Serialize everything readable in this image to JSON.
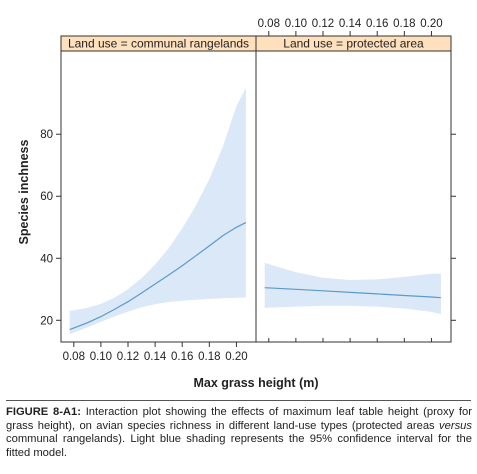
{
  "chart_data": {
    "type": "line",
    "xlabel": "Max grass height (m)",
    "ylabel": "Species inchness",
    "xlim": [
      0.075,
      0.21
    ],
    "ylim": [
      13,
      102
    ],
    "x_ticks": [
      0.08,
      0.1,
      0.12,
      0.14,
      0.16,
      0.18,
      0.2
    ],
    "y_ticks": [
      20,
      40,
      60,
      80
    ],
    "grid": false,
    "confidence_level": "95%",
    "colors": {
      "line": "#5b9bc8",
      "band": "#dbe8f8",
      "strip": "#ffe0bd",
      "axis": "#333333"
    },
    "panels": [
      {
        "strip_label": "Land use = communal rangelands",
        "x": [
          0.077,
          0.09,
          0.1,
          0.11,
          0.12,
          0.13,
          0.14,
          0.15,
          0.16,
          0.17,
          0.18,
          0.19,
          0.2,
          0.207
        ],
        "fit": [
          17.0,
          19.2,
          21.2,
          23.5,
          26.0,
          28.8,
          31.7,
          34.6,
          37.6,
          40.8,
          44.0,
          47.3,
          50.0,
          51.5
        ],
        "lower": [
          15.5,
          17.7,
          19.5,
          21.2,
          22.8,
          24.2,
          25.2,
          25.9,
          26.3,
          26.6,
          26.9,
          27.1,
          27.3,
          27.4
        ],
        "upper": [
          23.0,
          24.0,
          25.3,
          27.3,
          30.0,
          33.6,
          38.0,
          43.2,
          49.6,
          57.0,
          65.5,
          76.0,
          89.0,
          95.0
        ]
      },
      {
        "strip_label": "Land use = protected area",
        "x": [
          0.077,
          0.1,
          0.12,
          0.14,
          0.16,
          0.18,
          0.2,
          0.207
        ],
        "fit": [
          30.5,
          30.0,
          29.5,
          29.0,
          28.5,
          28.0,
          27.5,
          27.3
        ],
        "lower": [
          24.0,
          24.4,
          24.7,
          24.7,
          24.4,
          23.8,
          22.7,
          22.0
        ],
        "upper": [
          38.5,
          35.5,
          33.7,
          33.0,
          33.2,
          34.0,
          35.0,
          35.0
        ]
      }
    ]
  },
  "caption": {
    "label": "FIGURE 8-A1:",
    "text_before": " Interaction plot showing the effects of maximum leaf table height (proxy for grass height), on avian species richness in different land-use types (protected areas ",
    "text_italic": "versus",
    "text_after": " communal rangelands). Light blue shading represents the 95% confidence interval for the fitted model."
  }
}
